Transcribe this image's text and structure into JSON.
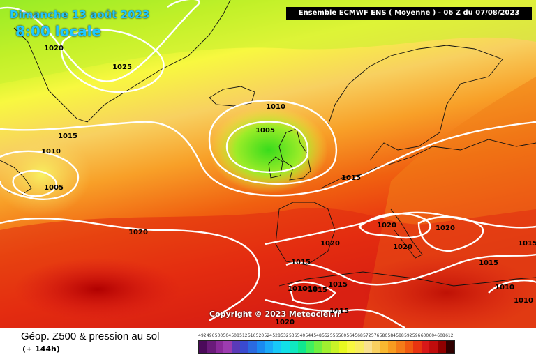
{
  "header": {
    "date": "Dimanche 13 août 2023",
    "time": "8:00 locale",
    "model": "Ensemble ECMWF ENS  ( Moyenne )  -  06 Z du 07/08/2023"
  },
  "footer": {
    "parameter": "Géop. Z500 & pression au sol",
    "lead_time": "(+ 144h)",
    "copyright": "Copyright © 2023 Meteociel.fr"
  },
  "isobar_labels": [
    "1020",
    "1025",
    "1010",
    "1005",
    "1015",
    "1010",
    "1005",
    "1020",
    "1015",
    "1020",
    "1020",
    "1020",
    "1020",
    "1015",
    "1015",
    "1015",
    "1010",
    "1010",
    "1015",
    "1015",
    "1010",
    "1010",
    "1015",
    "1020"
  ],
  "scale": {
    "labels": [
      "492",
      "496",
      "500",
      "504",
      "508",
      "512",
      "516",
      "520",
      "524",
      "528",
      "532",
      "536",
      "540",
      "544",
      "548",
      "552",
      "556",
      "560",
      "564",
      "568",
      "572",
      "576",
      "580",
      "584",
      "588",
      "592",
      "596",
      "600",
      "604",
      "608",
      "612"
    ],
    "colors": [
      "#4b0a5a",
      "#6a1a7a",
      "#8a2a9a",
      "#9c3cb0",
      "#5a3ab8",
      "#3a4ad0",
      "#2a6ae0",
      "#1a8af0",
      "#1aaaf8",
      "#18c8f8",
      "#12e0e8",
      "#10e8c0",
      "#10e890",
      "#40f060",
      "#70f040",
      "#a0f030",
      "#c8f428",
      "#e8f820",
      "#f8f840",
      "#f8ec60",
      "#f8e090",
      "#f8d060",
      "#f8b830",
      "#f89c20",
      "#f47c18",
      "#f05a10",
      "#e83410",
      "#d81818",
      "#c00c0c",
      "#900000",
      "#300000"
    ]
  }
}
